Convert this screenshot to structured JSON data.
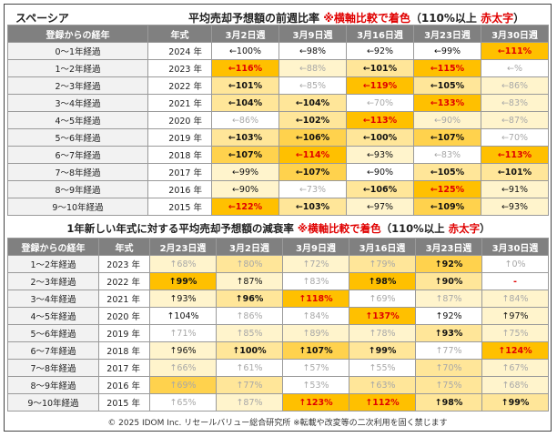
{
  "brand": "スペーシア",
  "title1": {
    "main": "平均売却予想額の前週比率 ",
    "note_red": "※横軸比較で着色",
    "note_paren_open": "（110%以上 ",
    "note_red2": "赤太字",
    "note_paren_close": "）"
  },
  "title2": {
    "main": "1年新しい年式に対する平均売却予想額の減衰率 ",
    "note_red": "※横軸比較で着色",
    "note_paren_open": "（110%以上 ",
    "note_red2": "赤太字",
    "note_paren_close": "）"
  },
  "table1": {
    "headers": [
      "登録からの経年",
      "年式",
      "3月2日週",
      "3月9日週",
      "3月16日週",
      "3月23日週",
      "3月30日週"
    ],
    "rows": [
      {
        "label": "0～1年経過",
        "year": "2024 年",
        "cells": [
          {
            "t": "←100%",
            "c": "neutral",
            "s": "black"
          },
          {
            "t": "←98%",
            "c": "neutral",
            "s": "black"
          },
          {
            "t": "←92%",
            "c": "neutral",
            "s": "black"
          },
          {
            "t": "←99%",
            "c": "neutral",
            "s": "black"
          },
          {
            "t": "←111%",
            "c": "strong",
            "s": "red"
          }
        ]
      },
      {
        "label": "1～2年経過",
        "year": "2023 年",
        "cells": [
          {
            "t": "←116%",
            "c": "strong",
            "s": "red"
          },
          {
            "t": "←88%",
            "c": "pale",
            "s": "grey"
          },
          {
            "t": "←101%",
            "c": "light",
            "s": "black"
          },
          {
            "t": "←115%",
            "c": "strong",
            "s": "red"
          },
          {
            "t": "←%",
            "c": "neutral",
            "s": "grey"
          }
        ]
      },
      {
        "label": "2～3年経過",
        "year": "2022 年",
        "cells": [
          {
            "t": "←101%",
            "c": "light",
            "s": "black"
          },
          {
            "t": "←85%",
            "c": "neutral",
            "s": "grey"
          },
          {
            "t": "←119%",
            "c": "strong",
            "s": "red"
          },
          {
            "t": "←105%",
            "c": "light",
            "s": "black"
          },
          {
            "t": "←86%",
            "c": "pale",
            "s": "grey"
          }
        ]
      },
      {
        "label": "3～4年経過",
        "year": "2021 年",
        "cells": [
          {
            "t": "←104%",
            "c": "light",
            "s": "black"
          },
          {
            "t": "←104%",
            "c": "light",
            "s": "black"
          },
          {
            "t": "←70%",
            "c": "neutral",
            "s": "grey"
          },
          {
            "t": "←133%",
            "c": "strong",
            "s": "red"
          },
          {
            "t": "←83%",
            "c": "pale",
            "s": "grey"
          }
        ]
      },
      {
        "label": "4～5年経過",
        "year": "2020 年",
        "cells": [
          {
            "t": "←86%",
            "c": "neutral",
            "s": "grey"
          },
          {
            "t": "←102%",
            "c": "light",
            "s": "black"
          },
          {
            "t": "←113%",
            "c": "strong",
            "s": "red"
          },
          {
            "t": "←90%",
            "c": "pale",
            "s": "grey"
          },
          {
            "t": "←87%",
            "c": "pale",
            "s": "grey"
          }
        ]
      },
      {
        "label": "5～6年経過",
        "year": "2019 年",
        "cells": [
          {
            "t": "←103%",
            "c": "light",
            "s": "black"
          },
          {
            "t": "←106%",
            "c": "mid",
            "s": "black"
          },
          {
            "t": "←100%",
            "c": "light",
            "s": "black"
          },
          {
            "t": "←107%",
            "c": "mid",
            "s": "black"
          },
          {
            "t": "←70%",
            "c": "neutral",
            "s": "grey"
          }
        ]
      },
      {
        "label": "6～7年経過",
        "year": "2018 年",
        "cells": [
          {
            "t": "←107%",
            "c": "mid",
            "s": "black"
          },
          {
            "t": "←114%",
            "c": "strong",
            "s": "red"
          },
          {
            "t": "←93%",
            "c": "pale",
            "s": "black"
          },
          {
            "t": "←83%",
            "c": "neutral",
            "s": "grey"
          },
          {
            "t": "←113%",
            "c": "strong",
            "s": "red"
          }
        ]
      },
      {
        "label": "7～8年経過",
        "year": "2017 年",
        "cells": [
          {
            "t": "←99%",
            "c": "pale",
            "s": "black"
          },
          {
            "t": "←107%",
            "c": "mid",
            "s": "black"
          },
          {
            "t": "←90%",
            "c": "neutral",
            "s": "black"
          },
          {
            "t": "←105%",
            "c": "light",
            "s": "black"
          },
          {
            "t": "←101%",
            "c": "light",
            "s": "black"
          }
        ]
      },
      {
        "label": "8～9年経過",
        "year": "2016 年",
        "cells": [
          {
            "t": "←90%",
            "c": "pale",
            "s": "black"
          },
          {
            "t": "←73%",
            "c": "neutral",
            "s": "grey"
          },
          {
            "t": "←106%",
            "c": "light",
            "s": "black"
          },
          {
            "t": "←125%",
            "c": "strong",
            "s": "red"
          },
          {
            "t": "←91%",
            "c": "pale",
            "s": "black"
          }
        ]
      },
      {
        "label": "9～10年経過",
        "year": "2015 年",
        "cells": [
          {
            "t": "←122%",
            "c": "strong",
            "s": "red"
          },
          {
            "t": "←103%",
            "c": "light",
            "s": "black"
          },
          {
            "t": "←97%",
            "c": "pale",
            "s": "black"
          },
          {
            "t": "←109%",
            "c": "mid",
            "s": "black"
          },
          {
            "t": "←93%",
            "c": "pale",
            "s": "black"
          }
        ]
      }
    ]
  },
  "table2": {
    "headers": [
      "登録からの経年",
      "年式",
      "2月23日週",
      "3月2日週",
      "3月9日週",
      "3月16日週",
      "3月23日週",
      "3月30日週"
    ],
    "rows": [
      {
        "label": "1～2年経過",
        "year": "2023 年",
        "cells": [
          {
            "t": "↑68%",
            "c": "pale",
            "s": "grey"
          },
          {
            "t": "↑80%",
            "c": "light",
            "s": "grey"
          },
          {
            "t": "↑72%",
            "c": "pale",
            "s": "grey"
          },
          {
            "t": "↑79%",
            "c": "light",
            "s": "grey"
          },
          {
            "t": "↑92%",
            "c": "mid",
            "s": "black"
          },
          {
            "t": "↑0%",
            "c": "neutral",
            "s": "grey"
          }
        ]
      },
      {
        "label": "2～3年経過",
        "year": "2022 年",
        "cells": [
          {
            "t": "↑99%",
            "c": "strong",
            "s": "black"
          },
          {
            "t": "↑87%",
            "c": "pale",
            "s": "black"
          },
          {
            "t": "↑83%",
            "c": "neutral",
            "s": "grey"
          },
          {
            "t": "↑98%",
            "c": "strong",
            "s": "black"
          },
          {
            "t": "↑90%",
            "c": "light",
            "s": "black"
          },
          {
            "t": "-",
            "c": "neutral",
            "s": "red"
          }
        ]
      },
      {
        "label": "3～4年経過",
        "year": "2021 年",
        "cells": [
          {
            "t": "↑93%",
            "c": "pale",
            "s": "black"
          },
          {
            "t": "↑96%",
            "c": "light",
            "s": "black"
          },
          {
            "t": "↑118%",
            "c": "strong",
            "s": "red"
          },
          {
            "t": "↑69%",
            "c": "neutral",
            "s": "grey"
          },
          {
            "t": "↑87%",
            "c": "pale",
            "s": "grey"
          },
          {
            "t": "↑84%",
            "c": "pale",
            "s": "grey"
          }
        ]
      },
      {
        "label": "4～5年経過",
        "year": "2020 年",
        "cells": [
          {
            "t": "↑104%",
            "c": "neutral",
            "s": "black"
          },
          {
            "t": "↑86%",
            "c": "neutral",
            "s": "grey"
          },
          {
            "t": "↑84%",
            "c": "neutral",
            "s": "grey"
          },
          {
            "t": "↑137%",
            "c": "strong",
            "s": "red"
          },
          {
            "t": "↑92%",
            "c": "neutral",
            "s": "black"
          },
          {
            "t": "↑97%",
            "c": "pale",
            "s": "black"
          }
        ]
      },
      {
        "label": "5～6年経過",
        "year": "2019 年",
        "cells": [
          {
            "t": "↑71%",
            "c": "neutral",
            "s": "grey"
          },
          {
            "t": "↑85%",
            "c": "pale",
            "s": "grey"
          },
          {
            "t": "↑89%",
            "c": "pale",
            "s": "grey"
          },
          {
            "t": "↑78%",
            "c": "pale",
            "s": "grey"
          },
          {
            "t": "↑93%",
            "c": "light",
            "s": "black"
          },
          {
            "t": "↑75%",
            "c": "pale",
            "s": "grey"
          }
        ]
      },
      {
        "label": "6～7年経過",
        "year": "2018 年",
        "cells": [
          {
            "t": "↑96%",
            "c": "pale",
            "s": "black"
          },
          {
            "t": "↑100%",
            "c": "light",
            "s": "black"
          },
          {
            "t": "↑107%",
            "c": "mid",
            "s": "black"
          },
          {
            "t": "↑99%",
            "c": "light",
            "s": "black"
          },
          {
            "t": "↑77%",
            "c": "neutral",
            "s": "grey"
          },
          {
            "t": "↑124%",
            "c": "strong",
            "s": "red"
          }
        ]
      },
      {
        "label": "7～8年経過",
        "year": "2017 年",
        "cells": [
          {
            "t": "↑66%",
            "c": "pale",
            "s": "grey"
          },
          {
            "t": "↑61%",
            "c": "neutral",
            "s": "grey"
          },
          {
            "t": "↑57%",
            "c": "neutral",
            "s": "grey"
          },
          {
            "t": "↑55%",
            "c": "neutral",
            "s": "grey"
          },
          {
            "t": "↑70%",
            "c": "light",
            "s": "grey"
          },
          {
            "t": "↑67%",
            "c": "pale",
            "s": "grey"
          }
        ]
      },
      {
        "label": "8～9年経過",
        "year": "2016 年",
        "cells": [
          {
            "t": "↑69%",
            "c": "mid",
            "s": "grey"
          },
          {
            "t": "↑77%",
            "c": "light",
            "s": "grey"
          },
          {
            "t": "↑53%",
            "c": "neutral",
            "s": "grey"
          },
          {
            "t": "↑63%",
            "c": "light",
            "s": "grey"
          },
          {
            "t": "↑75%",
            "c": "light",
            "s": "grey"
          },
          {
            "t": "↑68%",
            "c": "pale",
            "s": "grey"
          }
        ]
      },
      {
        "label": "9～10年経過",
        "year": "2015 年",
        "cells": [
          {
            "t": "↑65%",
            "c": "neutral",
            "s": "grey"
          },
          {
            "t": "↑87%",
            "c": "pale",
            "s": "grey"
          },
          {
            "t": "↑123%",
            "c": "strong",
            "s": "red"
          },
          {
            "t": "↑112%",
            "c": "strong",
            "s": "red"
          },
          {
            "t": "↑98%",
            "c": "light",
            "s": "black"
          },
          {
            "t": "↑99%",
            "c": "light",
            "s": "black"
          }
        ]
      }
    ]
  },
  "footer": "© 2025 IDOM Inc. リセールバリュー総合研究所 ※転載や改変等の二次利用を固く禁じます"
}
